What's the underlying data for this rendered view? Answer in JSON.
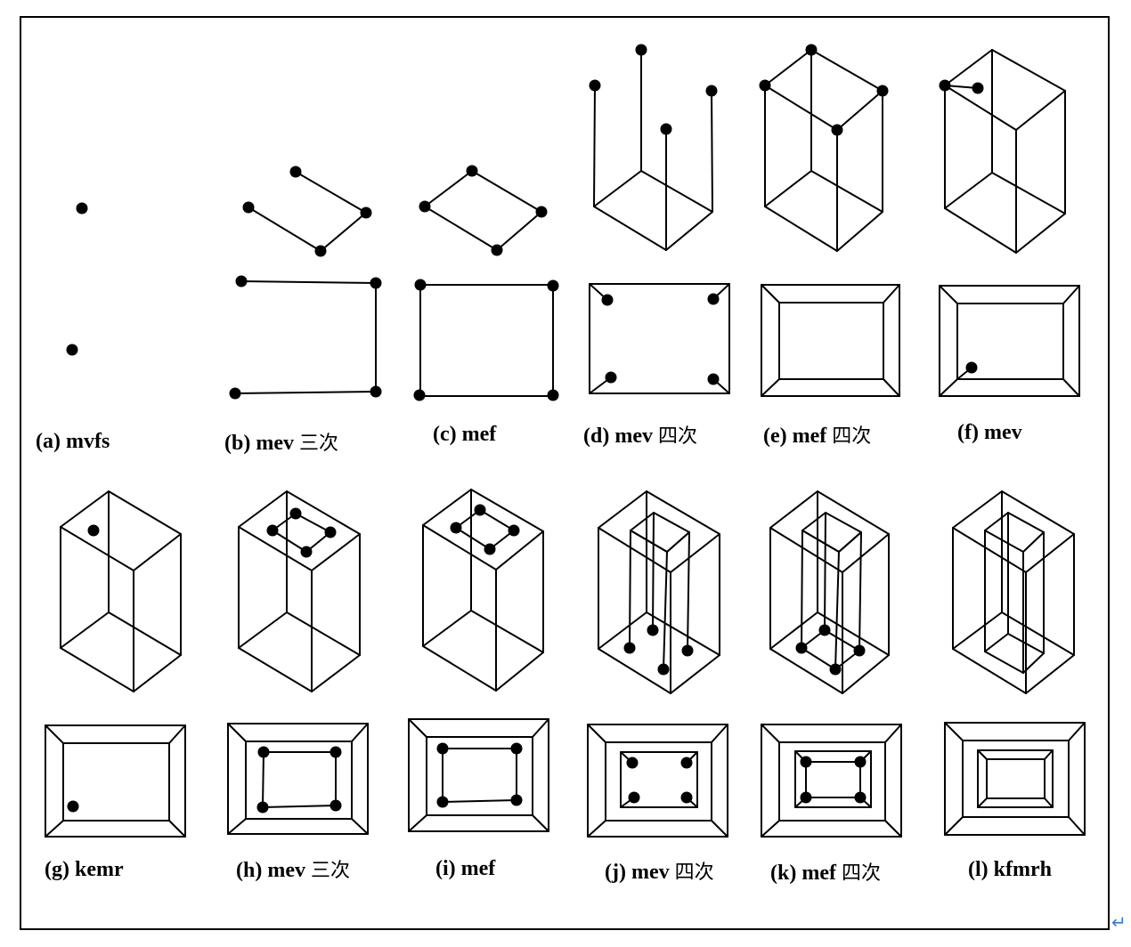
{
  "panels": [
    {
      "id": "a",
      "label": "(a) mvfs",
      "suffix": ""
    },
    {
      "id": "b",
      "label": "(b) mev",
      "suffix": "三次"
    },
    {
      "id": "c",
      "label": "(c) mef",
      "suffix": ""
    },
    {
      "id": "d",
      "label": "(d) mev",
      "suffix": "四次"
    },
    {
      "id": "e",
      "label": "(e) mef",
      "suffix": "四次"
    },
    {
      "id": "f",
      "label": "(f) mev",
      "suffix": ""
    },
    {
      "id": "g",
      "label": "(g) kemr",
      "suffix": ""
    },
    {
      "id": "h",
      "label": "(h) mev",
      "suffix": "三次"
    },
    {
      "id": "i",
      "label": "(i) mef",
      "suffix": ""
    },
    {
      "id": "j",
      "label": "(j) mev",
      "suffix": "四次"
    },
    {
      "id": "k",
      "label": "(k) mef",
      "suffix": "四次"
    },
    {
      "id": "l",
      "label": "(l) kfmrh",
      "suffix": ""
    }
  ],
  "return_mark": "↵",
  "colors": {
    "line": "#000000",
    "vertex": "#000000",
    "return_mark": "#3a7bd5"
  }
}
